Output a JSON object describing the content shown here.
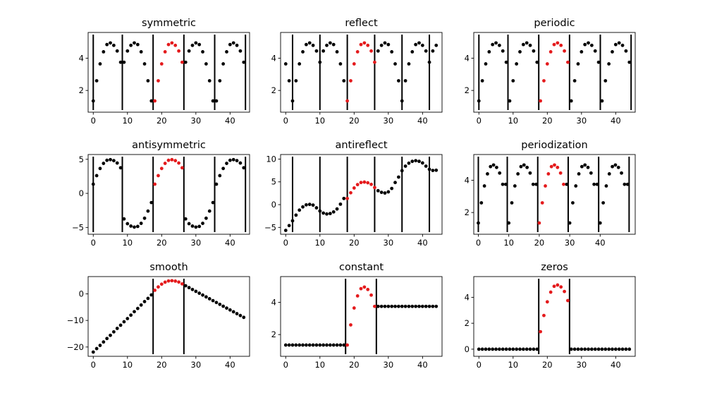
{
  "colors": {
    "signal": "#e41a1c",
    "extension": "#000000",
    "boundary": "#000000"
  },
  "chart_data": [
    {
      "type": "scatter",
      "title": "symmetric",
      "xlim": [
        -1.5,
        45.7
      ],
      "ylim": [
        0.65,
        5.6
      ],
      "xticks": [
        0,
        10,
        20,
        30,
        40
      ],
      "yticks": [
        2,
        4
      ],
      "boundaries": [
        0,
        8.5,
        17.5,
        26.5,
        35.5,
        44.5
      ],
      "signal": {
        "x": [
          18,
          19,
          20,
          21,
          22,
          23,
          24,
          25,
          26
        ],
        "y": [
          1.35,
          2.6,
          3.65,
          4.4,
          4.85,
          4.95,
          4.8,
          4.45,
          3.75
        ]
      },
      "extension": {
        "x": [
          0,
          1,
          2,
          3,
          4,
          5,
          6,
          7,
          8,
          9,
          10,
          11,
          12,
          13,
          14,
          15,
          16,
          17,
          27,
          28,
          29,
          30,
          31,
          32,
          33,
          34,
          35,
          36,
          37,
          38,
          39,
          40,
          41,
          42,
          43,
          44
        ],
        "y": [
          1.35,
          2.6,
          3.65,
          4.4,
          4.85,
          4.95,
          4.8,
          4.45,
          3.75,
          3.75,
          4.45,
          4.8,
          4.95,
          4.85,
          4.4,
          3.65,
          2.6,
          1.35,
          3.75,
          4.45,
          4.8,
          4.95,
          4.85,
          4.4,
          3.65,
          2.6,
          1.35,
          1.35,
          2.6,
          3.65,
          4.4,
          4.85,
          4.95,
          4.8,
          4.45,
          3.75
        ]
      }
    },
    {
      "type": "scatter",
      "title": "reflect",
      "xlim": [
        -1.5,
        45.7
      ],
      "ylim": [
        0.65,
        5.6
      ],
      "xticks": [
        0,
        10,
        20,
        30,
        40
      ],
      "yticks": [
        2,
        4
      ],
      "boundaries": [
        2,
        10,
        18,
        26,
        34,
        42
      ],
      "signal": {
        "x": [
          18,
          19,
          20,
          21,
          22,
          23,
          24,
          25,
          26
        ],
        "y": [
          1.35,
          2.6,
          3.65,
          4.4,
          4.85,
          4.95,
          4.8,
          4.45,
          3.75
        ]
      },
      "extension": {
        "x": [
          0,
          1,
          2,
          3,
          4,
          5,
          6,
          7,
          8,
          9,
          10,
          11,
          12,
          13,
          14,
          15,
          16,
          17,
          27,
          28,
          29,
          30,
          31,
          32,
          33,
          34,
          35,
          36,
          37,
          38,
          39,
          40,
          41,
          42,
          43,
          44
        ],
        "y": [
          3.65,
          2.6,
          1.35,
          2.6,
          3.65,
          4.4,
          4.85,
          4.95,
          4.8,
          4.45,
          3.75,
          4.45,
          4.8,
          4.95,
          4.85,
          4.4,
          3.65,
          2.6,
          4.45,
          4.8,
          4.95,
          4.85,
          4.4,
          3.65,
          2.6,
          1.35,
          2.6,
          3.65,
          4.4,
          4.85,
          4.95,
          4.8,
          4.45,
          3.75,
          4.45,
          4.8
        ]
      }
    },
    {
      "type": "scatter",
      "title": "periodic",
      "xlim": [
        -1.5,
        45.7
      ],
      "ylim": [
        0.65,
        5.6
      ],
      "xticks": [
        0,
        10,
        20,
        30,
        40
      ],
      "yticks": [
        2,
        4
      ],
      "boundaries": [
        0,
        8.5,
        17.5,
        26.5,
        35.5,
        44.5
      ],
      "signal": {
        "x": [
          18,
          19,
          20,
          21,
          22,
          23,
          24,
          25,
          26
        ],
        "y": [
          1.35,
          2.6,
          3.65,
          4.4,
          4.85,
          4.95,
          4.8,
          4.45,
          3.75
        ]
      },
      "extension": {
        "x": [
          0,
          1,
          2,
          3,
          4,
          5,
          6,
          7,
          8,
          9,
          10,
          11,
          12,
          13,
          14,
          15,
          16,
          17,
          27,
          28,
          29,
          30,
          31,
          32,
          33,
          34,
          35,
          36,
          37,
          38,
          39,
          40,
          41,
          42,
          43,
          44
        ],
        "y": [
          1.35,
          2.6,
          3.65,
          4.4,
          4.85,
          4.95,
          4.8,
          4.45,
          3.75,
          1.35,
          2.6,
          3.65,
          4.4,
          4.85,
          4.95,
          4.8,
          4.45,
          3.75,
          1.35,
          2.6,
          3.65,
          4.4,
          4.85,
          4.95,
          4.8,
          4.45,
          3.75,
          1.35,
          2.6,
          3.65,
          4.4,
          4.85,
          4.95,
          4.8,
          4.45,
          3.75
        ]
      }
    },
    {
      "type": "scatter",
      "title": "antisymmetric",
      "xlim": [
        -1.5,
        45.7
      ],
      "ylim": [
        -6.0,
        5.7
      ],
      "xticks": [
        0,
        10,
        20,
        30,
        40
      ],
      "yticks": [
        -5,
        0,
        5
      ],
      "boundaries": [
        0,
        8.5,
        17.5,
        26.5,
        35.5,
        44.5
      ],
      "signal": {
        "x": [
          18,
          19,
          20,
          21,
          22,
          23,
          24,
          25,
          26
        ],
        "y": [
          1.35,
          2.6,
          3.65,
          4.4,
          4.85,
          4.95,
          4.8,
          4.45,
          3.75
        ]
      },
      "extension": {
        "x": [
          0,
          1,
          2,
          3,
          4,
          5,
          6,
          7,
          8,
          9,
          10,
          11,
          12,
          13,
          14,
          15,
          16,
          17,
          27,
          28,
          29,
          30,
          31,
          32,
          33,
          34,
          35,
          36,
          37,
          38,
          39,
          40,
          41,
          42,
          43,
          44
        ],
        "y": [
          1.35,
          2.6,
          3.65,
          4.4,
          4.85,
          4.95,
          4.8,
          4.45,
          3.75,
          -3.75,
          -4.45,
          -4.8,
          -4.95,
          -4.85,
          -4.4,
          -3.65,
          -2.6,
          -1.35,
          -3.75,
          -4.45,
          -4.8,
          -4.95,
          -4.85,
          -4.4,
          -3.65,
          -2.6,
          -1.35,
          1.35,
          2.6,
          3.65,
          4.4,
          4.85,
          4.95,
          4.8,
          4.45,
          3.75
        ]
      }
    },
    {
      "type": "scatter",
      "title": "antireflect",
      "xlim": [
        -1.5,
        45.7
      ],
      "ylim": [
        -6.5,
        11.0
      ],
      "xticks": [
        0,
        10,
        20,
        30,
        40
      ],
      "yticks": [
        -5,
        0,
        5,
        10
      ],
      "boundaries": [
        2,
        10,
        18,
        26,
        34,
        42
      ],
      "signal": {
        "x": [
          18,
          19,
          20,
          21,
          22,
          23,
          24,
          25,
          26
        ],
        "y": [
          1.35,
          2.6,
          3.65,
          4.4,
          4.85,
          4.95,
          4.8,
          4.45,
          3.75
        ]
      },
      "extension": {
        "x": [
          0,
          1,
          2,
          3,
          4,
          5,
          6,
          7,
          8,
          9,
          10,
          11,
          12,
          13,
          14,
          15,
          16,
          17,
          27,
          28,
          29,
          30,
          31,
          32,
          33,
          34,
          35,
          36,
          37,
          38,
          39,
          40,
          41,
          42,
          43,
          44
        ],
        "y": [
          -5.65,
          -4.6,
          -3.55,
          -2.3,
          -1.2,
          -0.5,
          -0.05,
          0.05,
          -0.1,
          -0.7,
          -1.4,
          -1.85,
          -2.05,
          -1.95,
          -1.6,
          -0.95,
          0.1,
          1.35,
          3.05,
          2.7,
          2.55,
          2.8,
          3.55,
          4.85,
          6.05,
          7.45,
          8.45,
          9.1,
          9.5,
          9.65,
          9.5,
          9.15,
          8.45,
          7.75,
          7.5,
          7.55
        ]
      }
    },
    {
      "type": "scatter",
      "title": "periodization",
      "xlim": [
        -1.5,
        51.5
      ],
      "ylim": [
        0.65,
        5.6
      ],
      "xticks": [
        0,
        10,
        20,
        30,
        40
      ],
      "yticks": [
        2,
        4
      ],
      "boundaries": [
        0,
        9.5,
        19.5,
        29.5,
        39.5,
        49.5
      ],
      "signal": {
        "x": [
          20,
          21,
          22,
          23,
          24,
          25,
          26,
          27,
          28
        ],
        "y": [
          1.35,
          2.6,
          3.65,
          4.4,
          4.85,
          4.95,
          4.8,
          4.45,
          3.75
        ]
      },
      "extension": {
        "x": [
          0,
          1,
          2,
          3,
          4,
          5,
          6,
          7,
          8,
          9,
          10,
          11,
          12,
          13,
          14,
          15,
          16,
          17,
          18,
          19,
          29,
          30,
          31,
          32,
          33,
          34,
          35,
          36,
          37,
          38,
          39,
          40,
          41,
          42,
          43,
          44,
          45,
          46,
          47,
          48,
          49
        ],
        "y": [
          1.35,
          2.6,
          3.65,
          4.4,
          4.85,
          4.95,
          4.8,
          4.45,
          3.75,
          3.75,
          1.35,
          2.6,
          3.65,
          4.4,
          4.85,
          4.95,
          4.8,
          4.45,
          3.75,
          3.75,
          3.75,
          1.35,
          2.6,
          3.65,
          4.4,
          4.85,
          4.95,
          4.8,
          4.45,
          3.75,
          3.75,
          1.35,
          2.6,
          3.65,
          4.4,
          4.85,
          4.95,
          4.8,
          4.45,
          3.75,
          3.75
        ]
      }
    },
    {
      "type": "scatter",
      "title": "smooth",
      "xlim": [
        -1.5,
        45.7
      ],
      "ylim": [
        -23.5,
        6.5
      ],
      "xticks": [
        0,
        10,
        20,
        30,
        40
      ],
      "yticks": [
        -20,
        -10,
        0
      ],
      "boundaries": [
        17.5,
        26.5
      ],
      "signal": {
        "x": [
          18,
          19,
          20,
          21,
          22,
          23,
          24,
          25,
          26
        ],
        "y": [
          1.35,
          2.6,
          3.65,
          4.4,
          4.85,
          4.95,
          4.8,
          4.45,
          3.75
        ]
      },
      "extension": {
        "x": [
          0,
          1,
          2,
          3,
          4,
          5,
          6,
          7,
          8,
          9,
          10,
          11,
          12,
          13,
          14,
          15,
          16,
          17,
          27,
          28,
          29,
          30,
          31,
          32,
          33,
          34,
          35,
          36,
          37,
          38,
          39,
          40,
          41,
          42,
          43,
          44
        ],
        "y": [
          -21.9,
          -20.6,
          -19.4,
          -18.1,
          -16.8,
          -15.6,
          -14.3,
          -13.0,
          -11.8,
          -10.5,
          -9.3,
          -8.0,
          -6.7,
          -5.5,
          -4.2,
          -2.9,
          -1.7,
          -0.4,
          3.05,
          2.35,
          1.65,
          0.95,
          0.25,
          -0.45,
          -1.15,
          -1.85,
          -2.55,
          -3.25,
          -3.95,
          -4.65,
          -5.35,
          -6.05,
          -6.75,
          -7.45,
          -8.15,
          -8.85
        ]
      }
    },
    {
      "type": "scatter",
      "title": "constant",
      "xlim": [
        -1.5,
        45.7
      ],
      "ylim": [
        0.65,
        5.6
      ],
      "xticks": [
        0,
        10,
        20,
        30,
        40
      ],
      "yticks": [
        2,
        4
      ],
      "boundaries": [
        17.5,
        26.5
      ],
      "signal": {
        "x": [
          18,
          19,
          20,
          21,
          22,
          23,
          24,
          25,
          26
        ],
        "y": [
          1.35,
          2.6,
          3.65,
          4.4,
          4.85,
          4.95,
          4.8,
          4.45,
          3.75
        ]
      },
      "extension": {
        "x": [
          0,
          1,
          2,
          3,
          4,
          5,
          6,
          7,
          8,
          9,
          10,
          11,
          12,
          13,
          14,
          15,
          16,
          17,
          27,
          28,
          29,
          30,
          31,
          32,
          33,
          34,
          35,
          36,
          37,
          38,
          39,
          40,
          41,
          42,
          43,
          44
        ],
        "y": [
          1.35,
          1.35,
          1.35,
          1.35,
          1.35,
          1.35,
          1.35,
          1.35,
          1.35,
          1.35,
          1.35,
          1.35,
          1.35,
          1.35,
          1.35,
          1.35,
          1.35,
          1.35,
          3.75,
          3.75,
          3.75,
          3.75,
          3.75,
          3.75,
          3.75,
          3.75,
          3.75,
          3.75,
          3.75,
          3.75,
          3.75,
          3.75,
          3.75,
          3.75,
          3.75,
          3.75
        ]
      }
    },
    {
      "type": "scatter",
      "title": "zeros",
      "xlim": [
        -1.5,
        45.7
      ],
      "ylim": [
        -0.55,
        5.6
      ],
      "xticks": [
        0,
        10,
        20,
        30,
        40
      ],
      "yticks": [
        0,
        2,
        4
      ],
      "boundaries": [
        17.5,
        26.5
      ],
      "signal": {
        "x": [
          18,
          19,
          20,
          21,
          22,
          23,
          24,
          25,
          26
        ],
        "y": [
          1.35,
          2.6,
          3.65,
          4.4,
          4.85,
          4.95,
          4.8,
          4.45,
          3.75
        ]
      },
      "extension": {
        "x": [
          0,
          1,
          2,
          3,
          4,
          5,
          6,
          7,
          8,
          9,
          10,
          11,
          12,
          13,
          14,
          15,
          16,
          17,
          27,
          28,
          29,
          30,
          31,
          32,
          33,
          34,
          35,
          36,
          37,
          38,
          39,
          40,
          41,
          42,
          43,
          44
        ],
        "y": [
          0,
          0,
          0,
          0,
          0,
          0,
          0,
          0,
          0,
          0,
          0,
          0,
          0,
          0,
          0,
          0,
          0,
          0,
          0,
          0,
          0,
          0,
          0,
          0,
          0,
          0,
          0,
          0,
          0,
          0,
          0,
          0,
          0,
          0,
          0,
          0
        ]
      }
    }
  ]
}
